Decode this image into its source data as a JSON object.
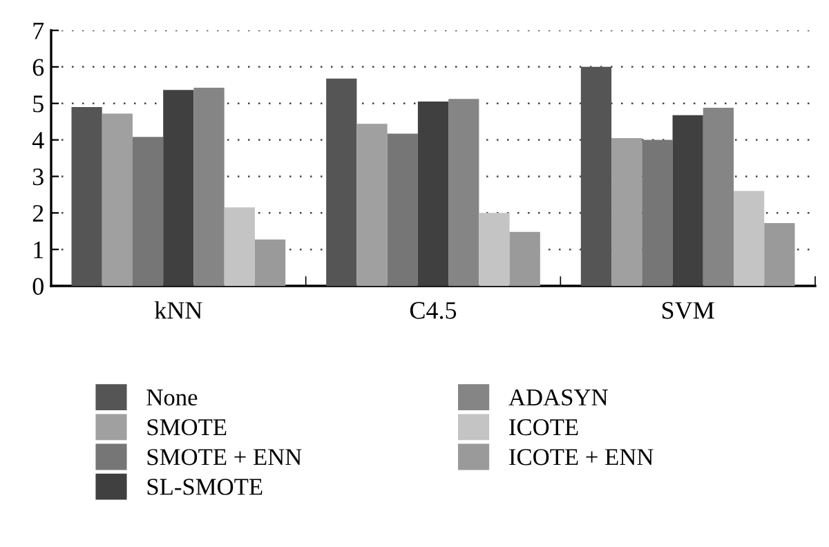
{
  "chart_data": {
    "type": "bar",
    "categories": [
      "kNN",
      "C4.5",
      "SVM"
    ],
    "series": [
      {
        "name": "None",
        "color": "#555555",
        "values": [
          4.9,
          5.68,
          6.0
        ]
      },
      {
        "name": "SMOTE",
        "color": "#a0a0a0",
        "values": [
          4.72,
          4.44,
          4.05
        ]
      },
      {
        "name": "SMOTE + ENN",
        "color": "#767676",
        "values": [
          4.08,
          4.17,
          4.0
        ]
      },
      {
        "name": "SL-SMOTE",
        "color": "#404040",
        "values": [
          5.37,
          5.05,
          4.68
        ]
      },
      {
        "name": "ADASYN",
        "color": "#858585",
        "values": [
          5.43,
          5.12,
          4.88
        ]
      },
      {
        "name": "ICOTE",
        "color": "#c4c4c4",
        "values": [
          2.15,
          2.0,
          2.6
        ]
      },
      {
        "name": "ICOTE + ENN",
        "color": "#9a9a9a",
        "values": [
          1.27,
          1.48,
          1.72
        ]
      }
    ],
    "ylim": [
      0,
      7
    ],
    "yticks": [
      0,
      1,
      2,
      3,
      4,
      5,
      6,
      7
    ],
    "grid": "y",
    "legend": "bottom"
  }
}
